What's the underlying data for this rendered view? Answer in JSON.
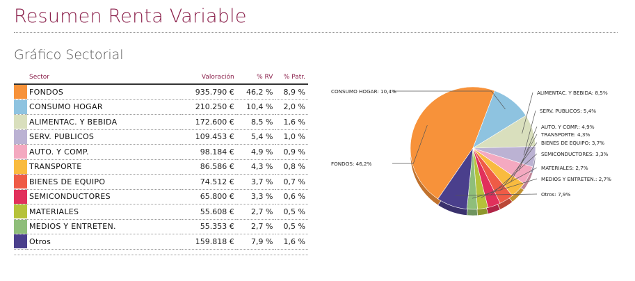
{
  "header": {
    "title": "Resumen Renta Variable",
    "subtitle": "Gráfico Sectorial"
  },
  "table": {
    "columns": [
      "Sector",
      "Valoración",
      "% RV",
      "% Patr."
    ],
    "rows": [
      {
        "color": "#f7923a",
        "sector": "FONDOS",
        "valoracion": "935.790 €",
        "rv": "46,2 %",
        "patr": "8,9 %"
      },
      {
        "color": "#8ec3e0",
        "sector": "CONSUMO HOGAR",
        "valoracion": "210.250 €",
        "rv": "10,4 %",
        "patr": "2,0 %"
      },
      {
        "color": "#d9dfbd",
        "sector": "ALIMENTAC. Y BEBIDA",
        "valoracion": "172.600 €",
        "rv": "8,5 %",
        "patr": "1,6 %"
      },
      {
        "color": "#bbb2d3",
        "sector": "SERV. PUBLICOS",
        "valoracion": "109.453 €",
        "rv": "5,4 %",
        "patr": "1,0 %"
      },
      {
        "color": "#f4a9c0",
        "sector": "AUTO. Y COMP.",
        "valoracion": "98.184 €",
        "rv": "4,9 %",
        "patr": "0,9 %"
      },
      {
        "color": "#f9bb3f",
        "sector": "TRANSPORTE",
        "valoracion": "86.586 €",
        "rv": "4,3 %",
        "patr": "0,8 %"
      },
      {
        "color": "#ef5b46",
        "sector": "BIENES DE EQUIPO",
        "valoracion": "74.512 €",
        "rv": "3,7 %",
        "patr": "0,7 %"
      },
      {
        "color": "#e1305b",
        "sector": "SEMICONDUCTORES",
        "valoracion": "65.800 €",
        "rv": "3,3 %",
        "patr": "0,6 %"
      },
      {
        "color": "#b6c23a",
        "sector": "MATERIALES",
        "valoracion": "55.608 €",
        "rv": "2,7 %",
        "patr": "0,5 %"
      },
      {
        "color": "#8fbe7a",
        "sector": "MEDIOS Y ENTRETEN.",
        "valoracion": "55.353 €",
        "rv": "2,7 %",
        "patr": "0,5 %"
      },
      {
        "color": "#4a3f8c",
        "sector": "Otros",
        "valoracion": "159.818 €",
        "rv": "7,9 %",
        "patr": "1,6 %"
      }
    ]
  },
  "chart_data": {
    "type": "pie",
    "title": "",
    "slices": [
      {
        "label": "FONDOS: 46,2%",
        "value": 46.2,
        "color": "#f7923a"
      },
      {
        "label": "CONSUMO HOGAR: 10,4%",
        "value": 10.4,
        "color": "#8ec3e0"
      },
      {
        "label": "ALIMENTAC. Y BEBIDA: 8,5%",
        "value": 8.5,
        "color": "#d9dfbd"
      },
      {
        "label": "SERV. PUBLICOS: 5,4%",
        "value": 5.4,
        "color": "#bbb2d3"
      },
      {
        "label": "AUTO. Y COMP.: 4,9%",
        "value": 4.9,
        "color": "#f4a9c0"
      },
      {
        "label": "TRANSPORTE: 4,3%",
        "value": 4.3,
        "color": "#f9bb3f"
      },
      {
        "label": "BIENES DE EQUIPO: 3,7%",
        "value": 3.7,
        "color": "#ef5b46"
      },
      {
        "label": "SEMICONDUCTORES: 3,3%",
        "value": 3.3,
        "color": "#e1305b"
      },
      {
        "label": "MATERIALES: 2,7%",
        "value": 2.7,
        "color": "#b6c23a"
      },
      {
        "label": "MEDIOS Y ENTRETEN.: 2,7%",
        "value": 2.7,
        "color": "#8fbe7a"
      },
      {
        "label": "Otros: 7,9%",
        "value": 7.9,
        "color": "#4a3f8c"
      }
    ]
  }
}
